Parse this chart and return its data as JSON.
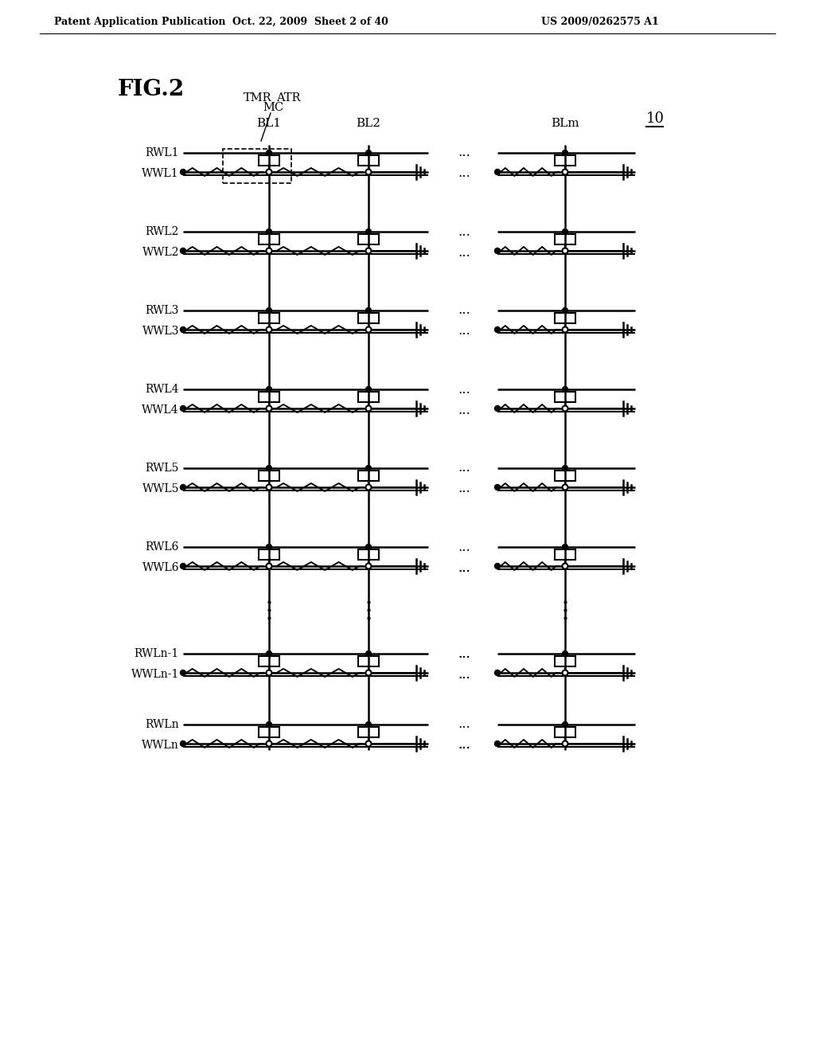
{
  "header_left": "Patent Application Publication",
  "header_mid": "Oct. 22, 2009  Sheet 2 of 40",
  "header_right": "US 2009/0262575 A1",
  "fig_label": "FIG.2",
  "ref_num": "10",
  "bg_color": "#ffffff"
}
